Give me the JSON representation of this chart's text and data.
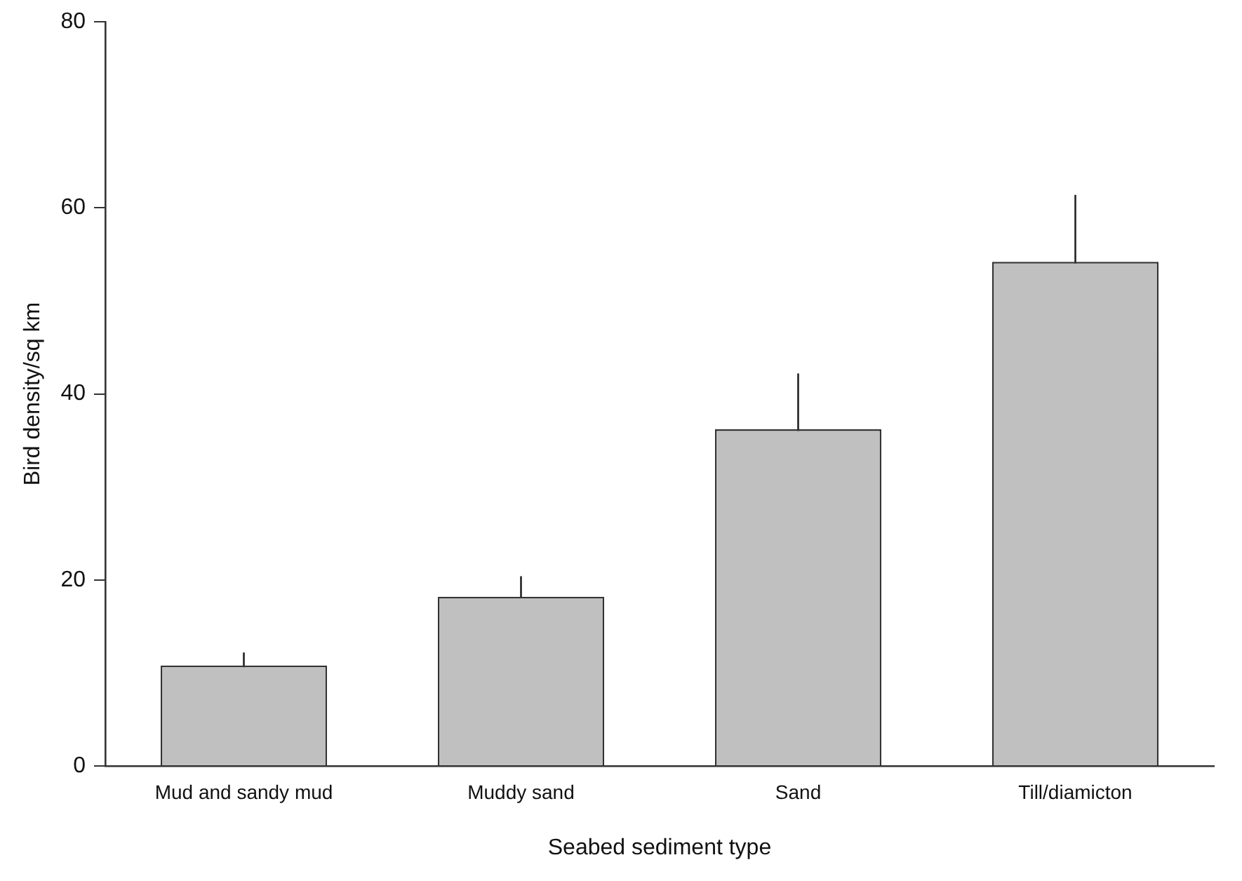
{
  "chart_data": {
    "type": "bar",
    "xlabel": "Seabed sediment type",
    "ylabel": "Bird density/sq km",
    "categories": [
      "Mud and sandy mud",
      "Muddy sand",
      "Sand",
      "Till/diamicton"
    ],
    "values": [
      10.8,
      18.2,
      36.2,
      54.2
    ],
    "errors": [
      1.4,
      2.2,
      6.0,
      7.2
    ],
    "color": "#c0c0c0",
    "ylim": [
      0,
      80
    ],
    "yticks": [
      0,
      20,
      40,
      60,
      80
    ],
    "grid": false,
    "legend": false
  }
}
